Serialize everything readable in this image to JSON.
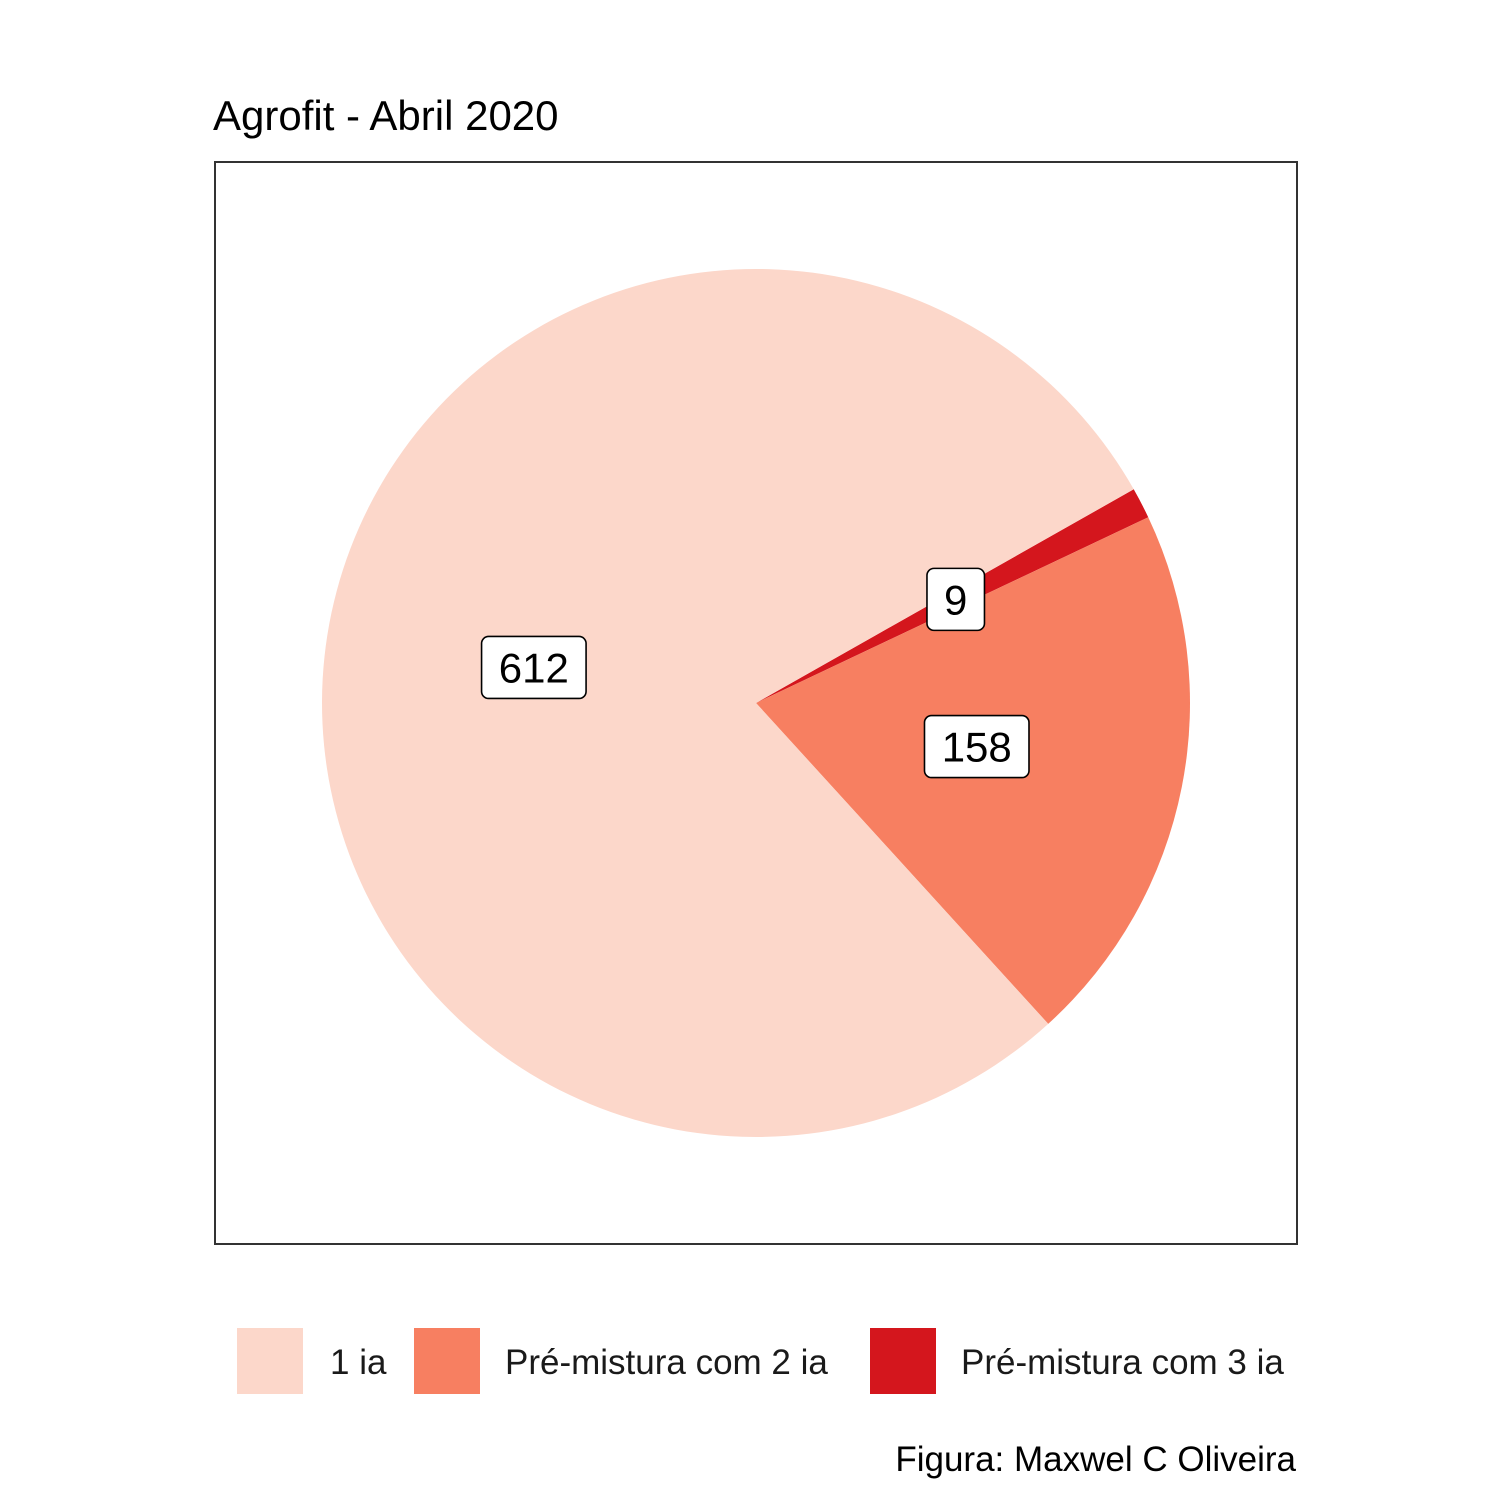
{
  "chart_data": {
    "type": "pie",
    "title": "Agrofit - Abril 2020",
    "caption": "Figura: Maxwel C Oliveira",
    "categories": [
      "1 ia",
      "Pré-mistura com 2 ia",
      "Pré-mistura com 3 ia"
    ],
    "values": [
      612,
      158,
      9
    ],
    "labels": [
      "612",
      "158",
      "9"
    ],
    "colors": [
      "#FCD7CA",
      "#F77F61",
      "#D4161D"
    ],
    "legend_position": "bottom",
    "start_angle_deg": 0,
    "direction": "clockwise",
    "panel_border": true
  }
}
